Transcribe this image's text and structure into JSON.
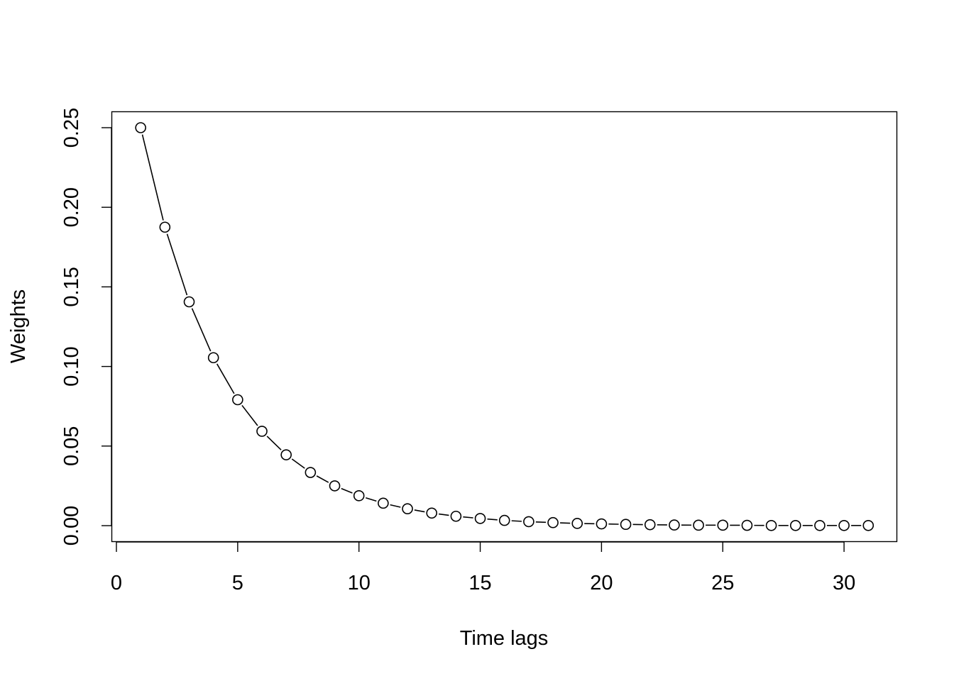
{
  "chart_data": {
    "type": "line",
    "title": "",
    "xlabel": "Time lags",
    "ylabel": "Weights",
    "xlim": [
      0,
      31
    ],
    "ylim": [
      0,
      0.25
    ],
    "x_ticks": [
      0,
      5,
      10,
      15,
      20,
      25,
      30
    ],
    "x_tick_labels": [
      "0",
      "5",
      "10",
      "15",
      "20",
      "25",
      "30"
    ],
    "y_ticks": [
      0,
      0.05,
      0.1,
      0.15,
      0.2,
      0.25
    ],
    "y_tick_labels": [
      "0.00",
      "0.05",
      "0.10",
      "0.15",
      "0.20",
      "0.25"
    ],
    "grid": false,
    "legend": "none",
    "series": [
      {
        "style": "both",
        "marker": "open-circle",
        "color": "#000000",
        "x": [
          1,
          2,
          3,
          4,
          5,
          6,
          7,
          8,
          9,
          10,
          11,
          12,
          13,
          14,
          15,
          16,
          17,
          18,
          19,
          20,
          21,
          22,
          23,
          24,
          25,
          26,
          27,
          28,
          29,
          30,
          31
        ],
        "y": [
          0.25,
          0.1875,
          0.1406,
          0.1055,
          0.0791,
          0.0593,
          0.0445,
          0.0334,
          0.025,
          0.0188,
          0.0141,
          0.0106,
          0.0079,
          0.0059,
          0.0045,
          0.0033,
          0.0025,
          0.0019,
          0.0014,
          0.0011,
          0.0008,
          0.0006,
          0.0004,
          0.0003,
          0.0003,
          0.0002,
          0.0001,
          0.0001,
          0.0001,
          0.0001,
          0.0001
        ]
      }
    ]
  }
}
